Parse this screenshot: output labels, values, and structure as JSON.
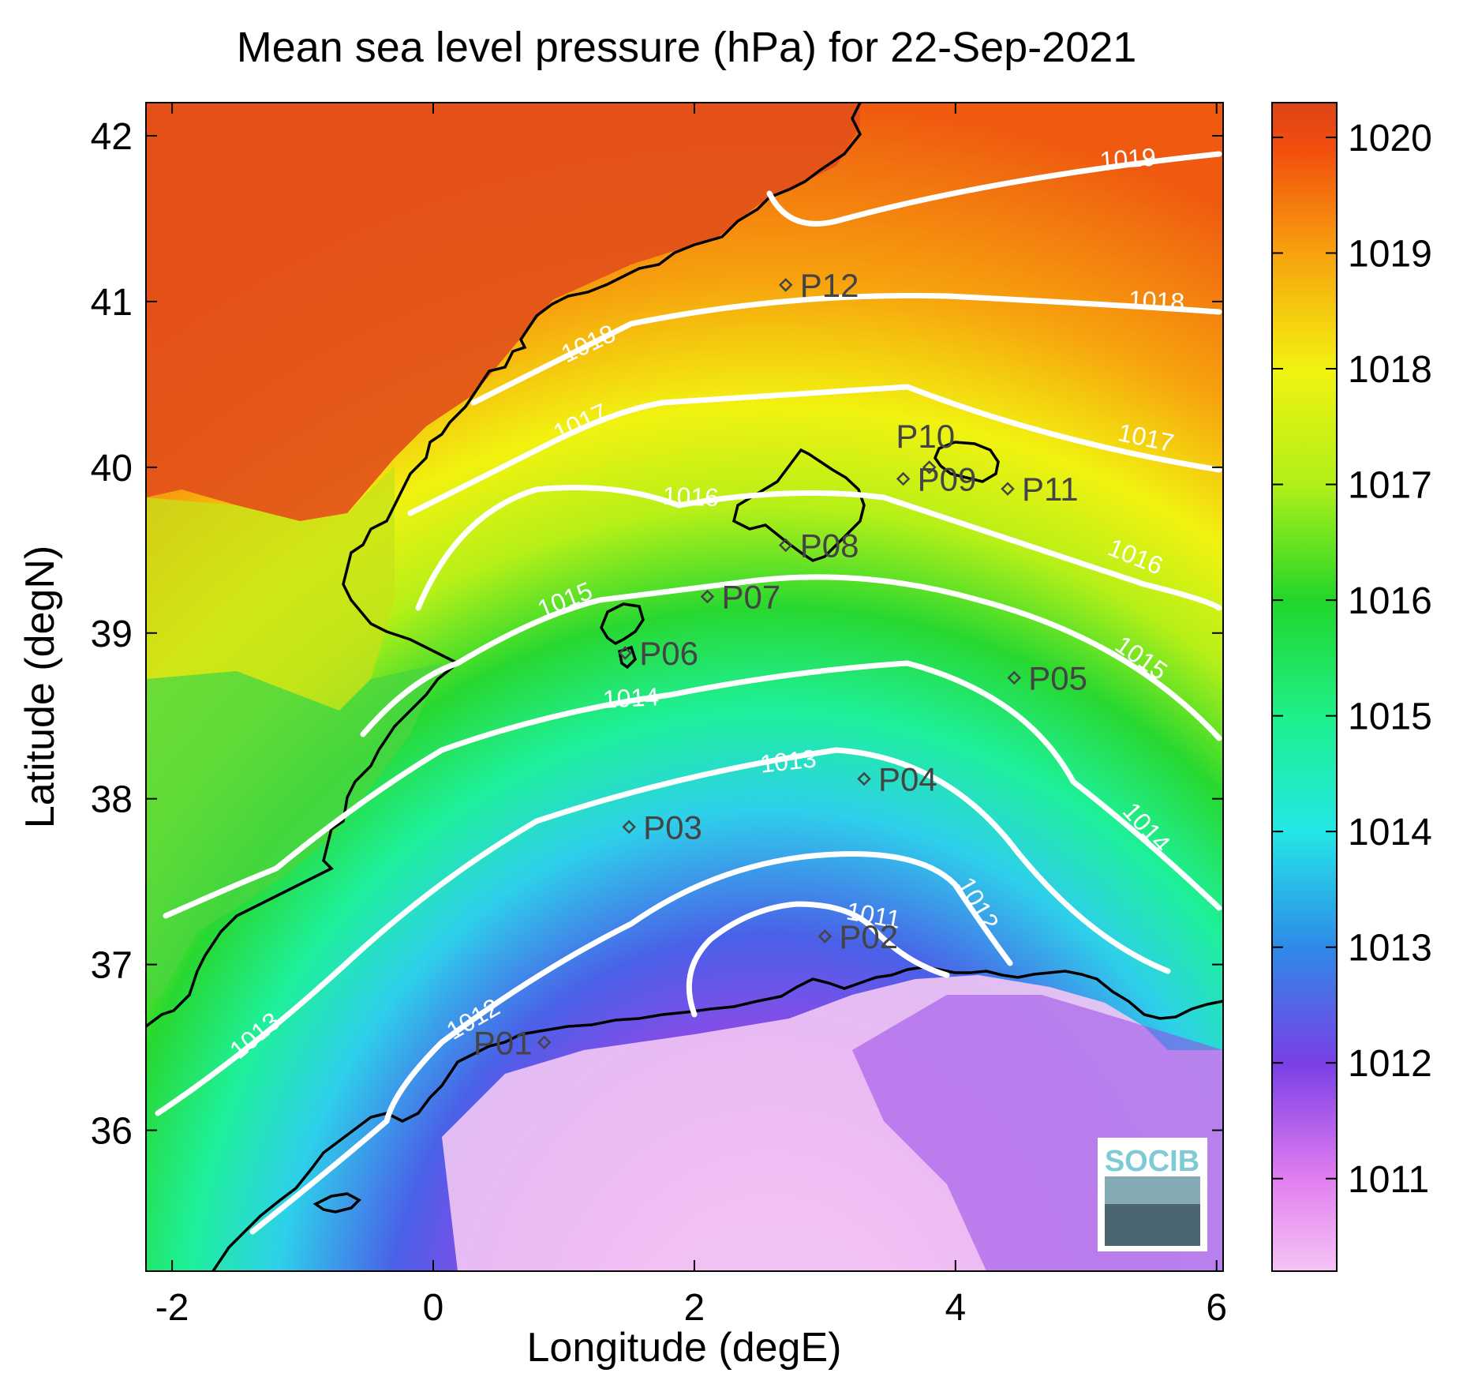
{
  "title": "Mean sea level pressure (hPa) for 22-Sep-2021",
  "xlabel": "Longitude (degE)",
  "ylabel": "Latitude (degN)",
  "x_axis": {
    "range": [
      -2.2,
      6.05
    ],
    "ticks": [
      -2,
      0,
      2,
      4,
      6
    ],
    "tick_labels": [
      "-2",
      "0",
      "2",
      "4",
      "6"
    ]
  },
  "y_axis": {
    "range": [
      35.15,
      42.2
    ],
    "ticks": [
      36,
      37,
      38,
      39,
      40,
      41,
      42
    ],
    "tick_labels": [
      "36",
      "37",
      "38",
      "39",
      "40",
      "41",
      "42"
    ]
  },
  "colorbar": {
    "range": [
      1010.2,
      1020.3
    ],
    "ticks": [
      1011,
      1012,
      1013,
      1014,
      1015,
      1016,
      1017,
      1018,
      1019,
      1020
    ],
    "tick_labels": [
      "1011",
      "1012",
      "1013",
      "1014",
      "1015",
      "1016",
      "1017",
      "1018",
      "1019",
      "1020"
    ],
    "colors": [
      "#f4c4f4",
      "#d24ae6",
      "#7a3fe6",
      "#2e8ae8",
      "#24e6e6",
      "#1ef08a",
      "#22d62a",
      "#b0f018",
      "#f2f210",
      "#f7a20e",
      "#f24e0e",
      "#dd4418"
    ]
  },
  "contour_color": "#ffffff",
  "coastline_color": "#000000",
  "stations": [
    {
      "name": "P01",
      "lon": 0.85,
      "lat": 36.53
    },
    {
      "name": "P02",
      "lon": 3.0,
      "lat": 37.17
    },
    {
      "name": "P03",
      "lon": 1.5,
      "lat": 37.83
    },
    {
      "name": "P04",
      "lon": 3.3,
      "lat": 38.12
    },
    {
      "name": "P05",
      "lon": 4.45,
      "lat": 38.73
    },
    {
      "name": "P06",
      "lon": 1.47,
      "lat": 38.88
    },
    {
      "name": "P07",
      "lon": 2.1,
      "lat": 39.22
    },
    {
      "name": "P08",
      "lon": 2.7,
      "lat": 39.53
    },
    {
      "name": "P09",
      "lon": 3.6,
      "lat": 39.93
    },
    {
      "name": "P10",
      "lon": 3.8,
      "lat": 40.0
    },
    {
      "name": "P11",
      "lon": 4.4,
      "lat": 39.87
    },
    {
      "name": "P12",
      "lon": 2.7,
      "lat": 41.1
    }
  ],
  "contours": [
    {
      "label": "1019",
      "value": 1019
    },
    {
      "label": "1018",
      "value": 1018
    },
    {
      "label": "1017",
      "value": 1017
    },
    {
      "label": "1016",
      "value": 1016
    },
    {
      "label": "1015",
      "value": 1015
    },
    {
      "label": "1014",
      "value": 1014
    },
    {
      "label": "1013",
      "value": 1013
    },
    {
      "label": "1012",
      "value": 1012
    },
    {
      "label": "1011",
      "value": 1011
    }
  ],
  "logo": {
    "text": "SOCIB"
  }
}
